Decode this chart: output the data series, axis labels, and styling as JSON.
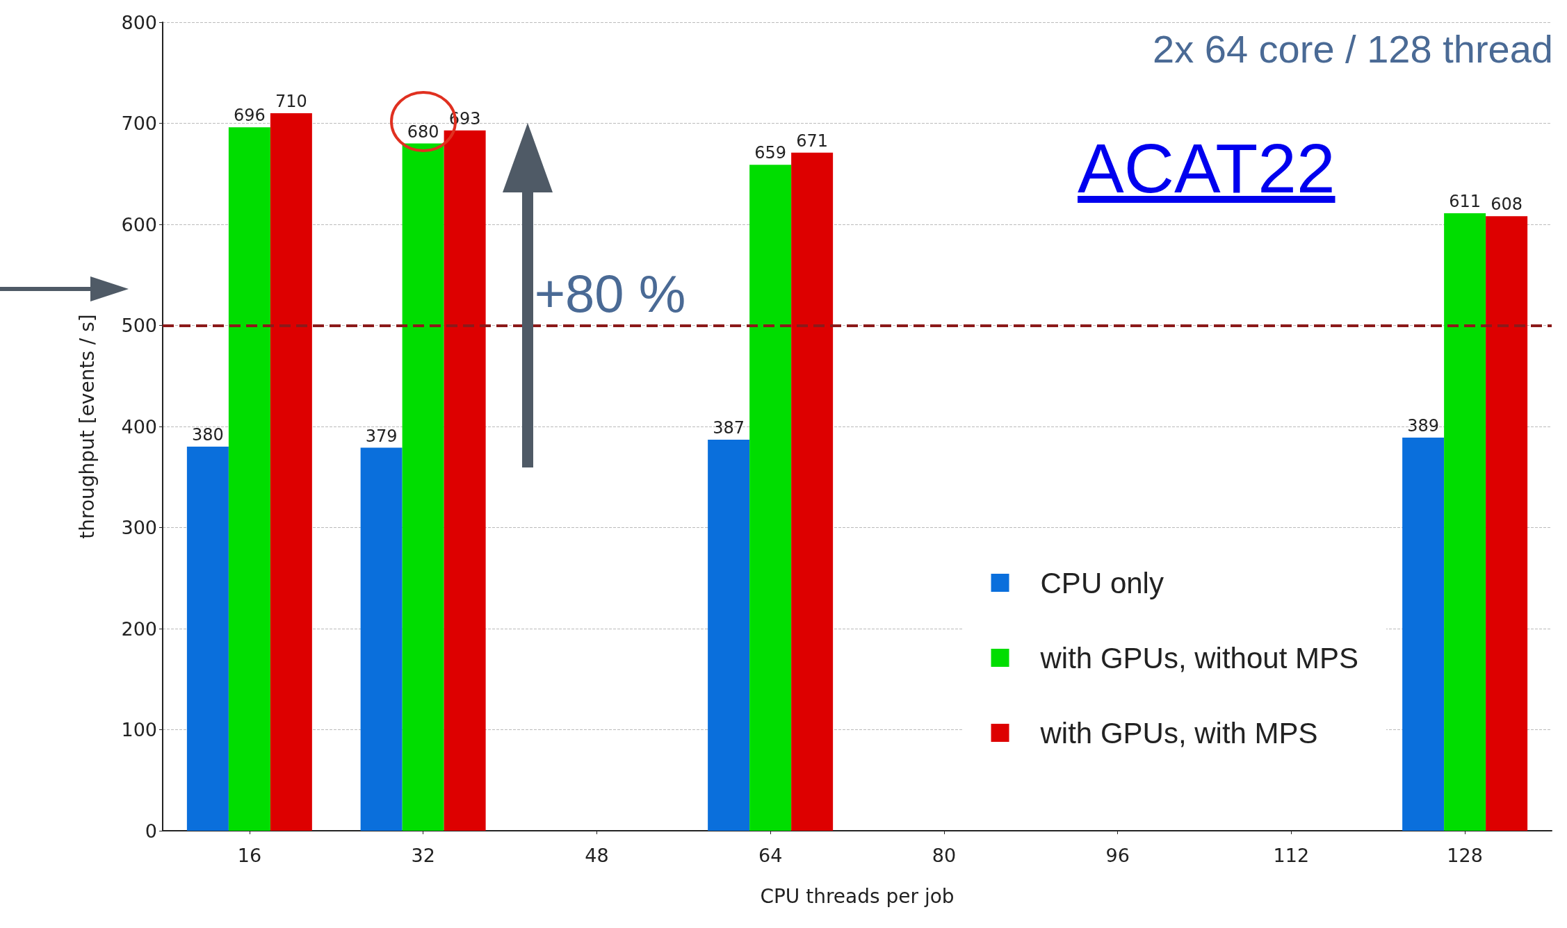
{
  "chart_data": {
    "type": "bar",
    "xlabel": "CPU threads per job",
    "ylabel": "throughput [events / s]",
    "categories": [
      "16",
      "32",
      "48",
      "64",
      "80",
      "96",
      "112",
      "128"
    ],
    "series": [
      {
        "name": "CPU only",
        "color": "#0a6fdc",
        "values": [
          380,
          379,
          null,
          387,
          null,
          null,
          null,
          389
        ]
      },
      {
        "name": "with GPUs, without MPS",
        "color": "#00dd00",
        "values": [
          696,
          680,
          null,
          659,
          null,
          null,
          null,
          611
        ]
      },
      {
        "name": "with GPUs, with MPS",
        "color": "#dd0000",
        "values": [
          710,
          693,
          null,
          671,
          null,
          null,
          null,
          608
        ]
      }
    ],
    "ylim": [
      0,
      800
    ],
    "yticks": [
      0,
      100,
      200,
      300,
      400,
      500,
      600,
      700,
      800
    ],
    "grid": "y",
    "legend": "bottom right",
    "data_labels": true,
    "ref_lines": [
      {
        "axis": "y",
        "value": 500,
        "color": "#8b1a1a",
        "line_style": "dashed"
      }
    ],
    "annotations": [
      "2x 64 core / 128 thread",
      "ACAT22",
      {
        "text": "+80 %",
        "x": "32",
        "y": 500
      }
    ]
  }
}
